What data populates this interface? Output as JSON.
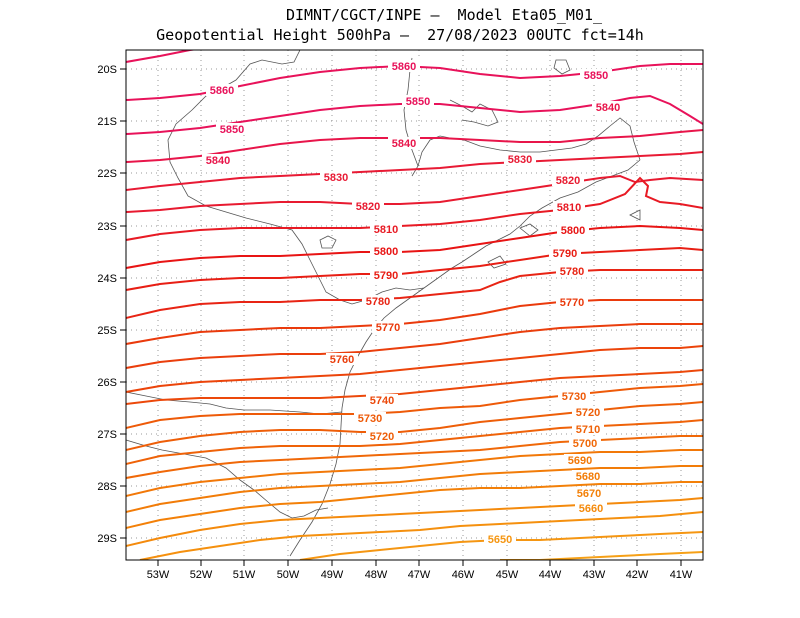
{
  "title": {
    "line1": "DIMNT/CGCT/INPE –  Model Eta05_M01_",
    "line2": "Geopotential Height 500hPa –  27/08/2023 00UTC fct=14h"
  },
  "map": {
    "lon_range": [
      -53.6,
      -40.6
    ],
    "lat_range": [
      -29.4,
      -19.9
    ],
    "lon_ticks": [
      "53W",
      "52W",
      "51W",
      "50W",
      "49W",
      "48W",
      "47W",
      "46W",
      "45W",
      "44W",
      "43W",
      "42W",
      "41W"
    ],
    "lat_ticks": [
      "20S",
      "21S",
      "22S",
      "23S",
      "24S",
      "25S",
      "26S",
      "27S",
      "28S",
      "29S"
    ],
    "grid_style": "dotted"
  },
  "contour_labels": [
    "5860",
    "5860",
    "5850",
    "5850",
    "5850",
    "5840",
    "5840",
    "5840",
    "5830",
    "5830",
    "5820",
    "5820",
    "5810",
    "5810",
    "5800",
    "5800",
    "5790",
    "5790",
    "5780",
    "5780",
    "5770",
    "5770",
    "5760",
    "5740",
    "5730",
    "5730",
    "5720",
    "5720",
    "5710",
    "5700",
    "5690",
    "5680",
    "5670",
    "5660",
    "5650"
  ],
  "colors": {
    "c5860": "#e8125a",
    "c5830": "#e81a34",
    "c5800": "#e81414",
    "c5770": "#ea3a0c",
    "c5730": "#ee5a08",
    "c5690": "#f27808",
    "c5650": "#f59612",
    "coast": "#555555"
  }
}
